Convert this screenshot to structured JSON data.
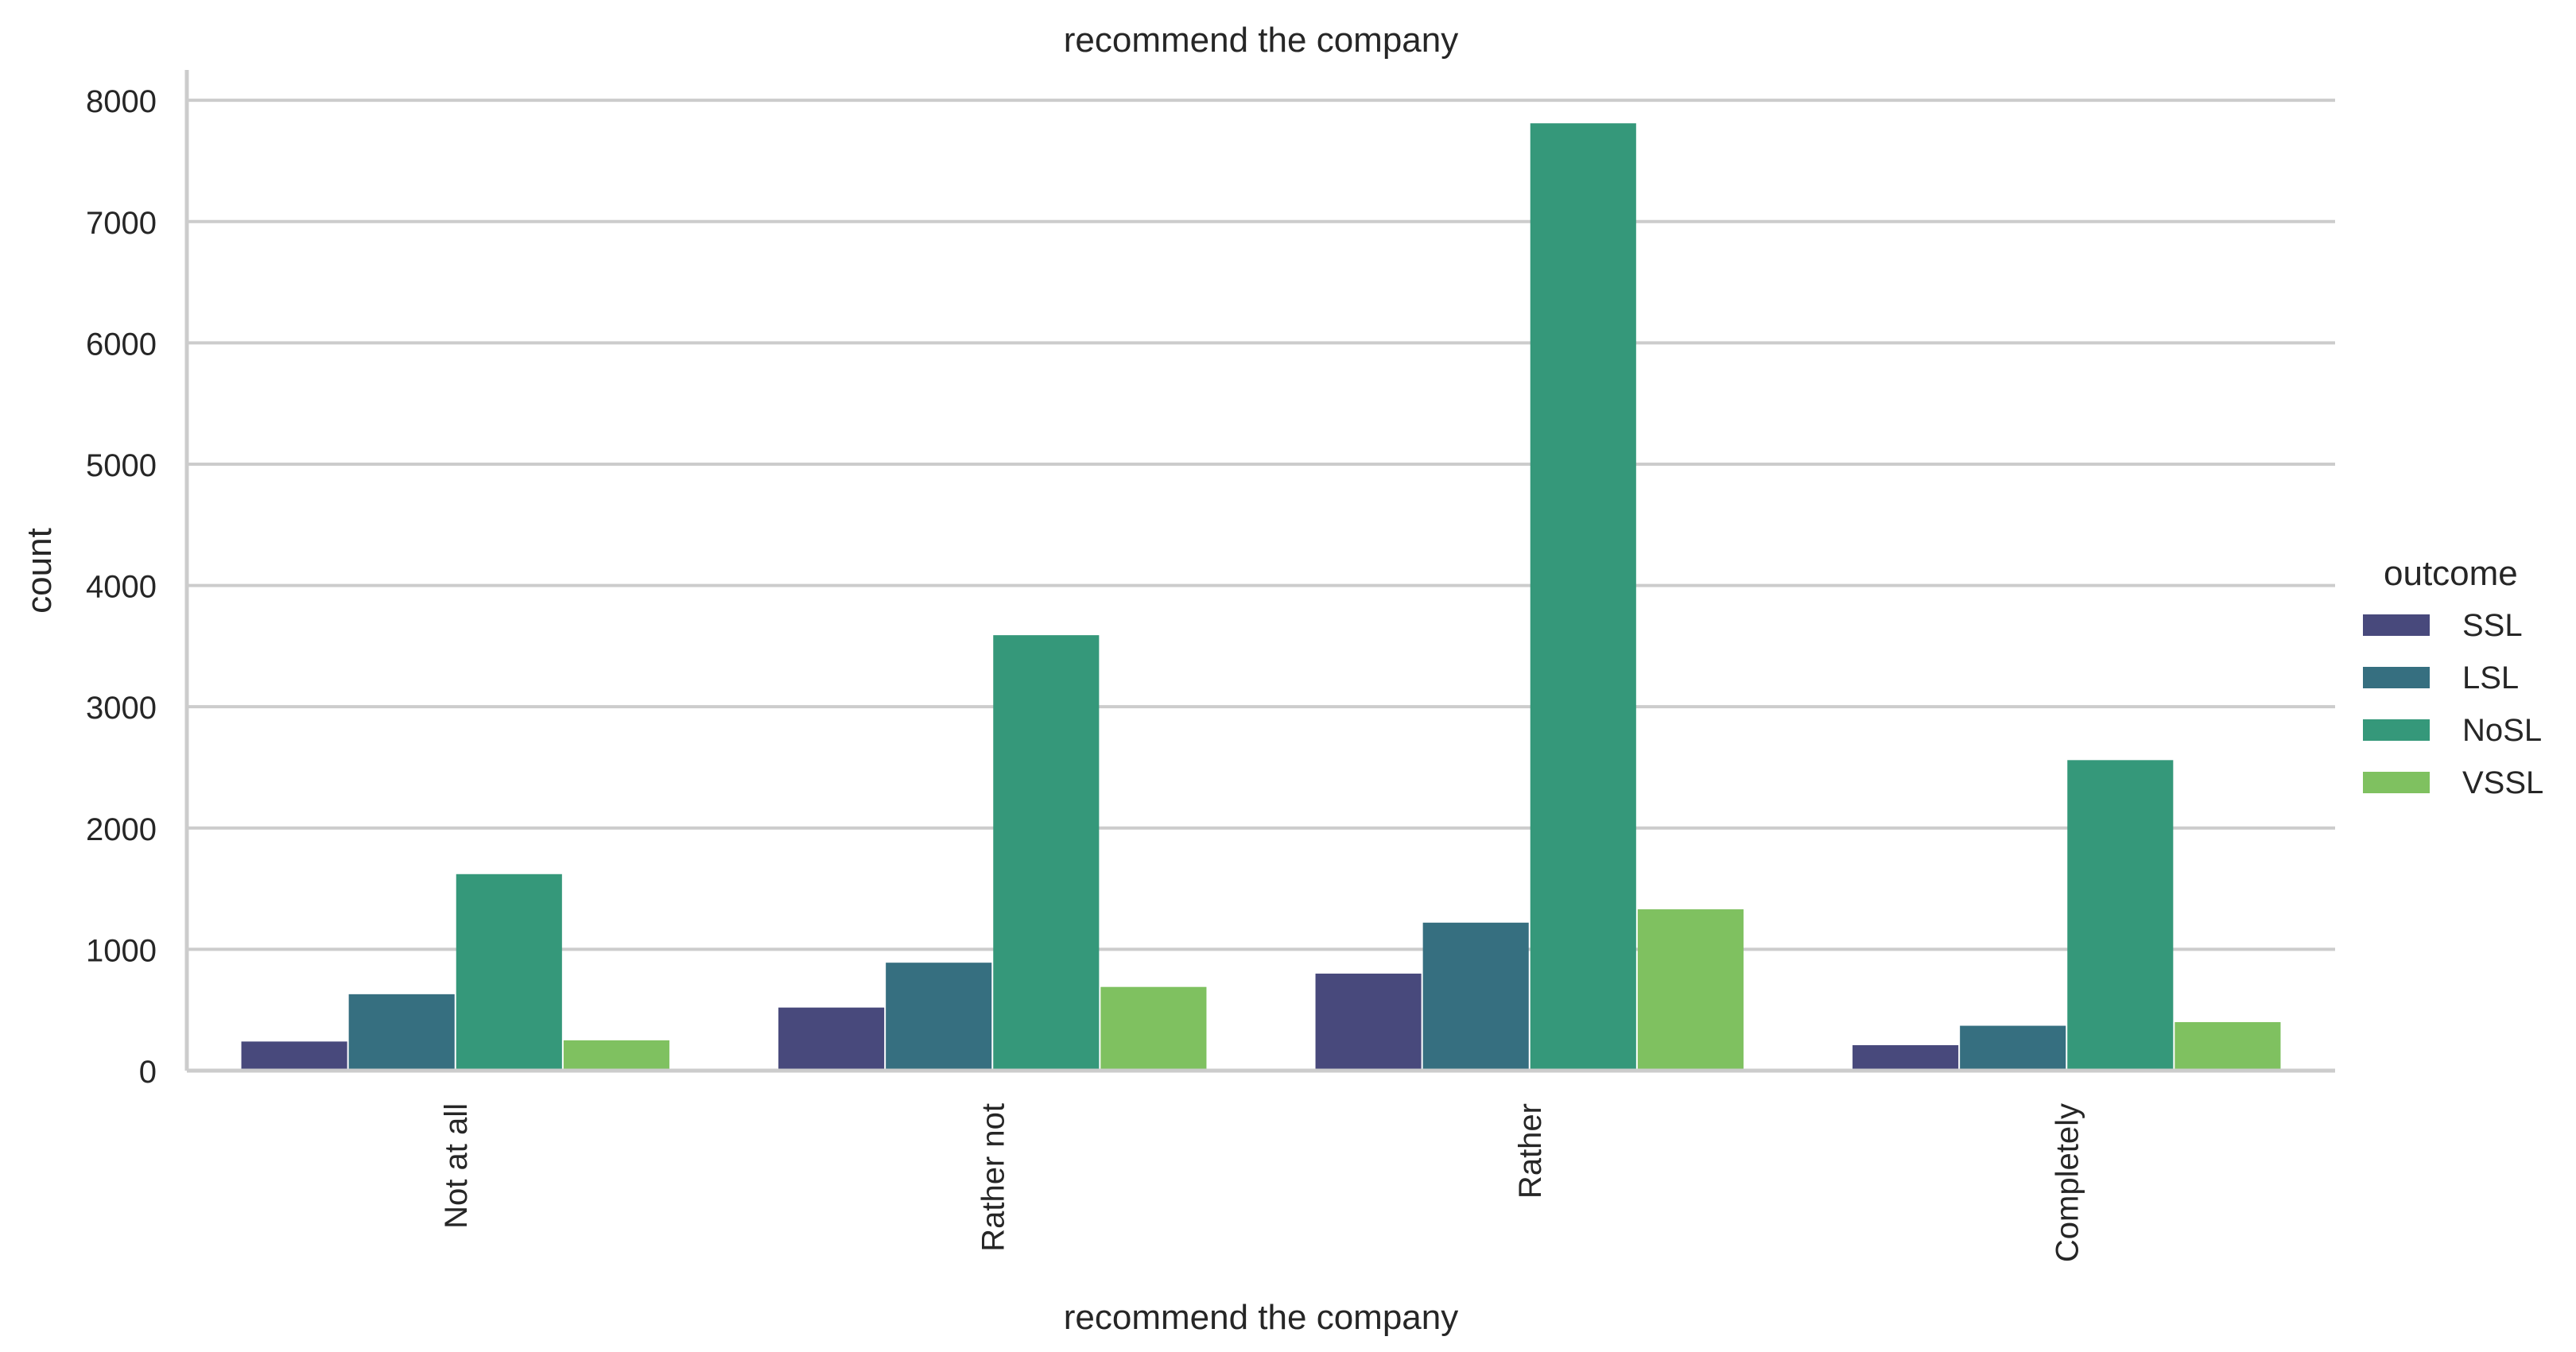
{
  "chart_data": {
    "type": "bar",
    "title": "recommend the company",
    "xlabel": "recommend the company",
    "ylabel": "count",
    "categories": [
      "Not at all",
      "Rather not",
      "Rather",
      "Completely"
    ],
    "ylim": [
      0,
      8250
    ],
    "yticks": [
      0,
      1000,
      2000,
      3000,
      4000,
      5000,
      6000,
      7000,
      8000
    ],
    "grid": "horizontal",
    "legend": {
      "title": "outcome",
      "placement": "right"
    },
    "series": [
      {
        "name": "SSL",
        "color": "#48497c",
        "values": [
          240,
          520,
          800,
          210
        ]
      },
      {
        "name": "LSL",
        "color": "#366f80",
        "values": [
          630,
          890,
          1220,
          370
        ]
      },
      {
        "name": "NoSL",
        "color": "#35987a",
        "values": [
          1620,
          3590,
          7810,
          2560
        ]
      },
      {
        "name": "VSSL",
        "color": "#7fc160",
        "values": [
          250,
          690,
          1330,
          400
        ]
      }
    ]
  }
}
